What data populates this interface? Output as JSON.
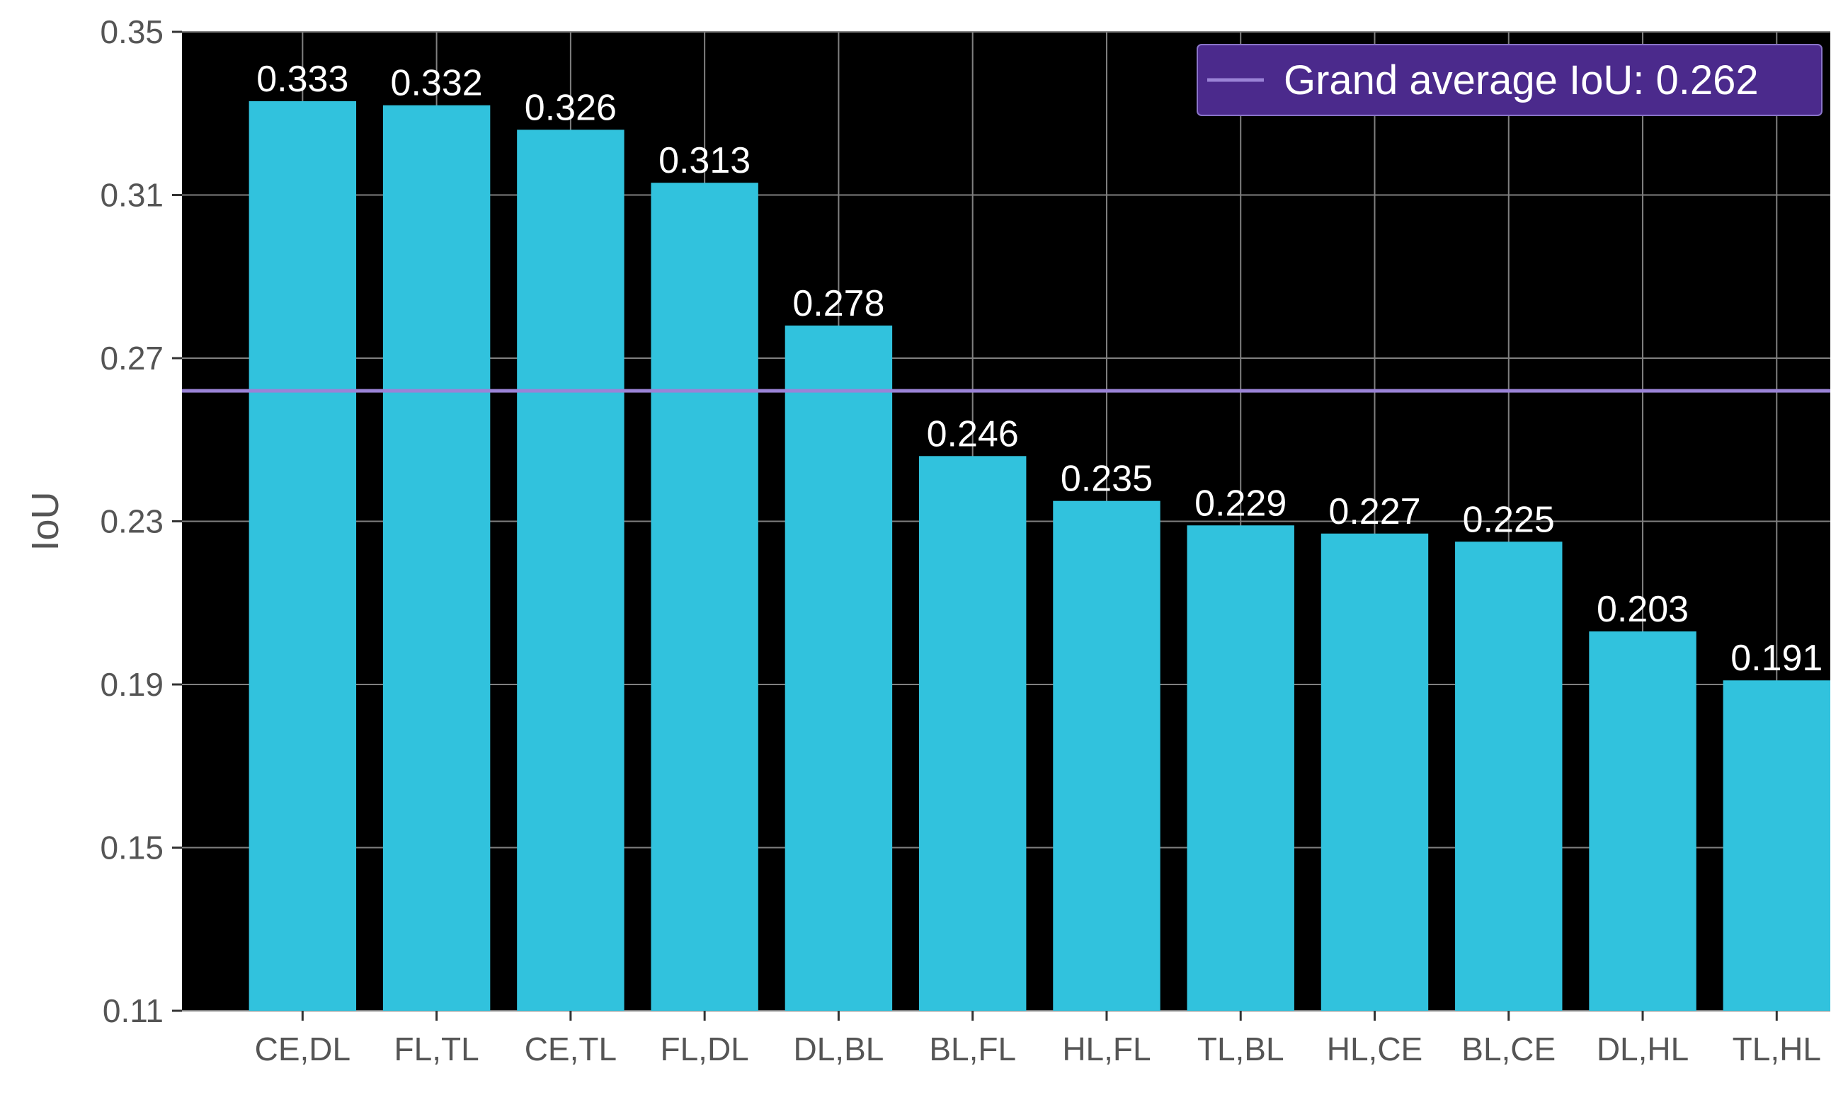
{
  "chart_data": {
    "type": "bar",
    "categories": [
      "CE,DL",
      "FL,TL",
      "CE,TL",
      "FL,DL",
      "DL,BL",
      "BL,FL",
      "HL,FL",
      "TL,BL",
      "HL,CE",
      "BL,CE",
      "DL,HL",
      "TL,HL"
    ],
    "values": [
      0.333,
      0.332,
      0.326,
      0.313,
      0.278,
      0.246,
      0.235,
      0.229,
      0.227,
      0.225,
      0.203,
      0.191
    ],
    "value_labels": [
      "0.333",
      "0.332",
      "0.326",
      "0.313",
      "0.278",
      "0.246",
      "0.235",
      "0.229",
      "0.227",
      "0.225",
      "0.203",
      "0.191"
    ],
    "title": "",
    "xlabel": "",
    "ylabel": "IoU",
    "ylim": [
      0.11,
      0.35
    ],
    "yticks": [
      0.11,
      0.15,
      0.19,
      0.23,
      0.27,
      0.31,
      0.35
    ],
    "ytick_labels": [
      "0.11",
      "0.15",
      "0.19",
      "0.23",
      "0.27",
      "0.31",
      "0.35"
    ],
    "reference_line": {
      "value": 0.262,
      "label": "Grand average IoU: 0.262"
    },
    "legend_position": "top-right",
    "grid": true,
    "colors": {
      "bar": "#31c2dd",
      "plot_background": "#000000",
      "grid": "#808080",
      "reference_line": "#9a83d6",
      "legend_background": "#4b2a8c",
      "value_label": "#ffffff",
      "tick_label": "#555555"
    }
  }
}
